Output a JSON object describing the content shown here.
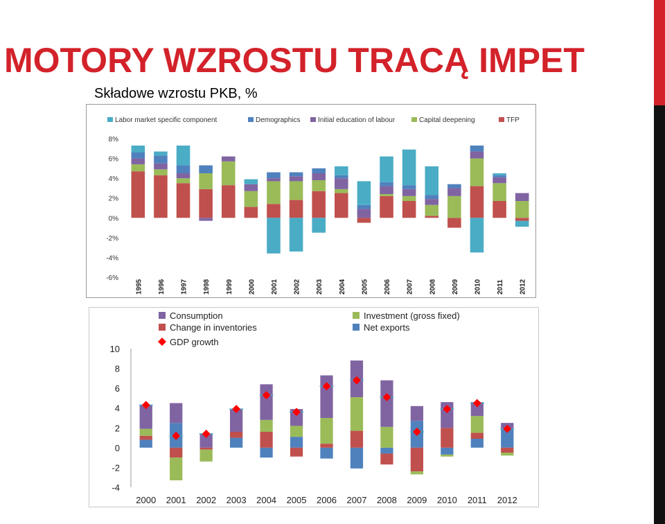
{
  "page": {
    "title": "MOTORY WZROSTU TRACĄ IMPET",
    "subtitle": "Składowe wzrostu PKB, %",
    "accent_color": "#d3222a"
  },
  "chart_data": [
    {
      "type": "bar",
      "stacked": true,
      "categories": [
        "1995",
        "1996",
        "1997",
        "1998",
        "1999",
        "2000",
        "2001",
        "2002",
        "2003",
        "2004",
        "2005",
        "2006",
        "2007",
        "2008",
        "2009",
        "2010",
        "2011",
        "2012"
      ],
      "series": [
        {
          "name": "Labor market specific component",
          "color": "#4bacc6",
          "values": [
            0.7,
            0.4,
            2.0,
            0.0,
            0.0,
            0.5,
            -3.6,
            -3.4,
            -1.5,
            0.9,
            2.4,
            2.6,
            3.6,
            2.9,
            0.0,
            -3.5,
            0.2,
            -0.6
          ]
        },
        {
          "name": "Demographics",
          "color": "#4f81bd",
          "values": [
            0.6,
            0.8,
            0.8,
            0.8,
            0.0,
            0.0,
            0.6,
            0.4,
            0.5,
            0.3,
            0.4,
            0.4,
            0.4,
            0.4,
            0.4,
            0.6,
            0.2,
            0.0
          ]
        },
        {
          "name": "Initial education of labour",
          "color": "#8064a2",
          "values": [
            0.6,
            0.6,
            0.5,
            -0.3,
            0.5,
            0.7,
            0.3,
            0.5,
            0.7,
            1.1,
            0.9,
            0.8,
            0.7,
            0.6,
            0.8,
            0.7,
            0.6,
            0.8
          ]
        },
        {
          "name": "Capital deepening",
          "color": "#9bbb59",
          "values": [
            0.7,
            0.6,
            0.5,
            1.6,
            2.4,
            1.6,
            2.3,
            1.9,
            1.1,
            0.4,
            0.0,
            0.2,
            0.5,
            1.1,
            2.2,
            2.8,
            1.8,
            1.7
          ]
        },
        {
          "name": "TFP",
          "color": "#c0504d",
          "values": [
            4.7,
            4.3,
            3.5,
            2.9,
            3.3,
            1.1,
            1.4,
            1.8,
            2.7,
            2.5,
            -0.5,
            2.2,
            1.7,
            0.2,
            -1.0,
            3.2,
            1.7,
            -0.3
          ]
        }
      ],
      "ylim": [
        -6,
        8
      ],
      "yticks": [
        "8%",
        "6%",
        "4%",
        "2%",
        "0%",
        "-2%",
        "-4%",
        "-6%"
      ],
      "grid": false,
      "legend": "top"
    },
    {
      "type": "bar",
      "stacked": true,
      "categories": [
        "2000",
        "2001",
        "2002",
        "2003",
        "2004",
        "2005",
        "2006",
        "2007",
        "2008",
        "2009",
        "2010",
        "2011",
        "2012"
      ],
      "series": [
        {
          "name": "Consumption",
          "color": "#8064a2",
          "values": [
            2.4,
            2.0,
            1.4,
            2.3,
            3.6,
            1.7,
            4.3,
            3.7,
            4.7,
            1.5,
            2.6,
            1.4,
            0.6
          ]
        },
        {
          "name": "Change in inventories",
          "color": "#c0504d",
          "values": [
            0.4,
            -1.0,
            -0.2,
            0.6,
            1.6,
            -0.9,
            0.4,
            1.7,
            -1.1,
            -2.4,
            2.0,
            0.6,
            -0.5
          ]
        },
        {
          "name": "Investment (gross fixed)",
          "color": "#9bbb59",
          "values": [
            0.7,
            -2.3,
            -1.2,
            0.0,
            1.2,
            1.1,
            2.6,
            3.4,
            2.1,
            -0.3,
            -0.2,
            1.7,
            -0.3
          ]
        },
        {
          "name": "Net exports",
          "color": "#4f81bd",
          "values": [
            0.8,
            2.5,
            0.0,
            1.0,
            -1.0,
            1.1,
            -1.1,
            -2.1,
            -0.6,
            2.7,
            -0.7,
            0.9,
            1.9
          ]
        }
      ],
      "markers": {
        "name": "GDP growth",
        "color": "#ff0000",
        "values": [
          4.3,
          1.2,
          1.4,
          3.9,
          5.3,
          3.6,
          6.2,
          6.8,
          5.1,
          1.6,
          3.9,
          4.5,
          1.9
        ]
      },
      "ylim": [
        -4,
        10
      ],
      "yticks": [
        "10",
        "8",
        "6",
        "4",
        "2",
        "0",
        "-2",
        "-4"
      ],
      "grid": false,
      "legend": "top"
    }
  ]
}
